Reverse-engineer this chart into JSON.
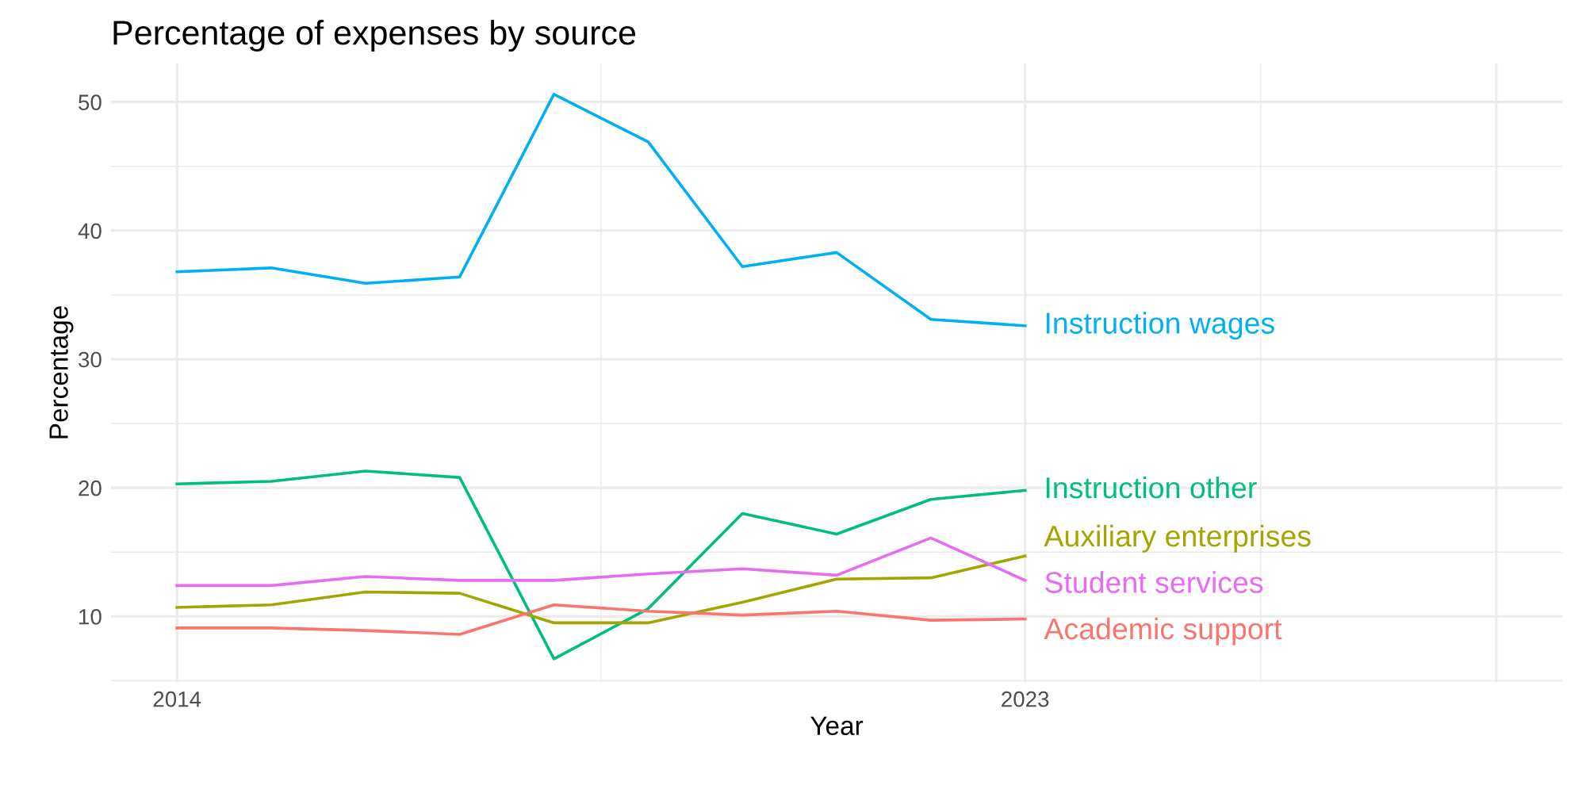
{
  "chart_data": {
    "type": "line",
    "title": "Percentage of expenses by source",
    "xlabel": "Year",
    "ylabel": "Percentage",
    "x": [
      2014,
      2015,
      2016,
      2017,
      2018,
      2019,
      2020,
      2021,
      2022,
      2023
    ],
    "series": [
      {
        "name": "Instruction wages",
        "color": "#00b0f6",
        "values": [
          36.8,
          37.1,
          35.9,
          36.4,
          50.6,
          46.9,
          37.2,
          38.3,
          33.1,
          32.6
        ]
      },
      {
        "name": "Instruction other",
        "color": "#00bf7d",
        "values": [
          20.3,
          20.5,
          21.3,
          20.8,
          6.7,
          10.6,
          18.0,
          16.4,
          19.1,
          19.8
        ]
      },
      {
        "name": "Auxiliary enterprises",
        "color": "#a3a500",
        "values": [
          10.7,
          10.9,
          11.9,
          11.8,
          9.5,
          9.5,
          11.1,
          12.9,
          13.0,
          14.7
        ]
      },
      {
        "name": "Student services",
        "color": "#e76bf3",
        "values": [
          12.4,
          12.4,
          13.1,
          12.8,
          12.8,
          13.3,
          13.7,
          13.2,
          16.1,
          12.8
        ]
      },
      {
        "name": "Academic support",
        "color": "#f8766d",
        "values": [
          9.1,
          9.1,
          8.9,
          8.6,
          10.9,
          10.4,
          10.1,
          10.4,
          9.7,
          9.8
        ]
      }
    ],
    "xlim": [
      2013.3,
      2028.7
    ],
    "xticks": [
      2014,
      2023,
      {
        "value": 2028,
        "label": null
      }
    ],
    "ylim": [
      4.9,
      53
    ],
    "yticks": [
      10,
      20,
      30,
      40,
      50
    ],
    "grid": true,
    "legend": false,
    "marker": "none",
    "line_style": "solid"
  }
}
